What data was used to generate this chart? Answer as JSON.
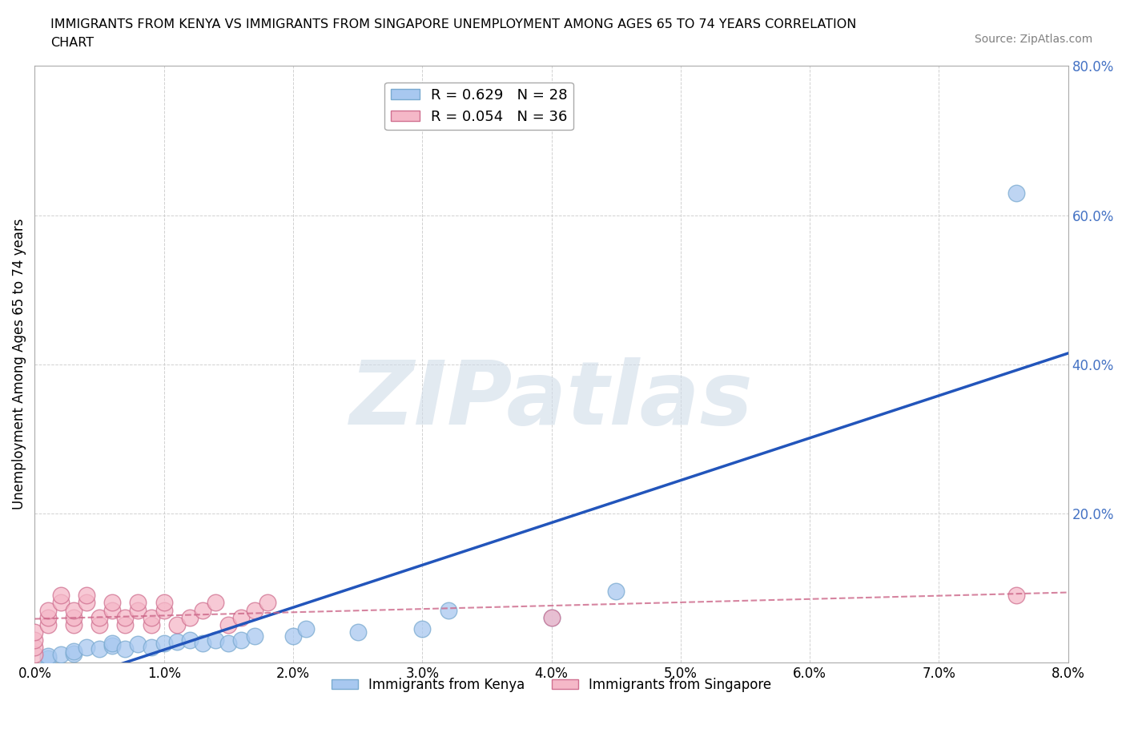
{
  "title_line1": "IMMIGRANTS FROM KENYA VS IMMIGRANTS FROM SINGAPORE UNEMPLOYMENT AMONG AGES 65 TO 74 YEARS CORRELATION",
  "title_line2": "CHART",
  "source_text": "Source: ZipAtlas.com",
  "ylabel": "Unemployment Among Ages 65 to 74 years",
  "xlim": [
    0.0,
    0.08
  ],
  "ylim": [
    0.0,
    0.8
  ],
  "xticks": [
    0.0,
    0.01,
    0.02,
    0.03,
    0.04,
    0.05,
    0.06,
    0.07,
    0.08
  ],
  "yticks": [
    0.0,
    0.2,
    0.4,
    0.6,
    0.8
  ],
  "xtick_labels": [
    "0.0%",
    "1.0%",
    "2.0%",
    "3.0%",
    "4.0%",
    "5.0%",
    "6.0%",
    "7.0%",
    "8.0%"
  ],
  "ytick_labels_left": [
    "0.0%",
    "20.0%",
    "40.0%",
    "60.0%",
    "80.0%"
  ],
  "ytick_labels_right": [
    "",
    "20.0%",
    "40.0%",
    "60.0%",
    "80.0%"
  ],
  "kenya_color": "#a8c8f0",
  "kenya_edge_color": "#7aaad0",
  "singapore_color": "#f5b8c8",
  "singapore_edge_color": "#d07090",
  "kenya_R": 0.629,
  "kenya_N": 28,
  "singapore_R": 0.054,
  "singapore_N": 36,
  "kenya_line_color": "#2255bb",
  "singapore_line_color": "#cc6688",
  "right_tick_color": "#4472c4",
  "watermark_text": "ZIPatlas",
  "kenya_x": [
    0.001,
    0.001,
    0.002,
    0.003,
    0.003,
    0.004,
    0.005,
    0.006,
    0.006,
    0.007,
    0.008,
    0.009,
    0.01,
    0.011,
    0.012,
    0.013,
    0.014,
    0.015,
    0.016,
    0.017,
    0.02,
    0.021,
    0.025,
    0.03,
    0.032,
    0.04,
    0.045,
    0.076
  ],
  "kenya_y": [
    0.005,
    0.008,
    0.01,
    0.012,
    0.015,
    0.02,
    0.018,
    0.022,
    0.025,
    0.018,
    0.024,
    0.02,
    0.025,
    0.028,
    0.03,
    0.025,
    0.03,
    0.025,
    0.03,
    0.035,
    0.035,
    0.045,
    0.04,
    0.045,
    0.07,
    0.06,
    0.095,
    0.63
  ],
  "singapore_x": [
    0.0,
    0.0,
    0.0,
    0.0,
    0.001,
    0.001,
    0.001,
    0.002,
    0.002,
    0.003,
    0.003,
    0.003,
    0.004,
    0.004,
    0.005,
    0.005,
    0.006,
    0.006,
    0.007,
    0.007,
    0.008,
    0.008,
    0.009,
    0.009,
    0.01,
    0.01,
    0.011,
    0.012,
    0.013,
    0.014,
    0.015,
    0.016,
    0.017,
    0.018,
    0.04,
    0.076
  ],
  "singapore_y": [
    0.01,
    0.02,
    0.03,
    0.04,
    0.05,
    0.06,
    0.07,
    0.08,
    0.09,
    0.05,
    0.06,
    0.07,
    0.08,
    0.09,
    0.05,
    0.06,
    0.07,
    0.08,
    0.05,
    0.06,
    0.07,
    0.08,
    0.05,
    0.06,
    0.07,
    0.08,
    0.05,
    0.06,
    0.07,
    0.08,
    0.05,
    0.06,
    0.07,
    0.08,
    0.06,
    0.09
  ]
}
